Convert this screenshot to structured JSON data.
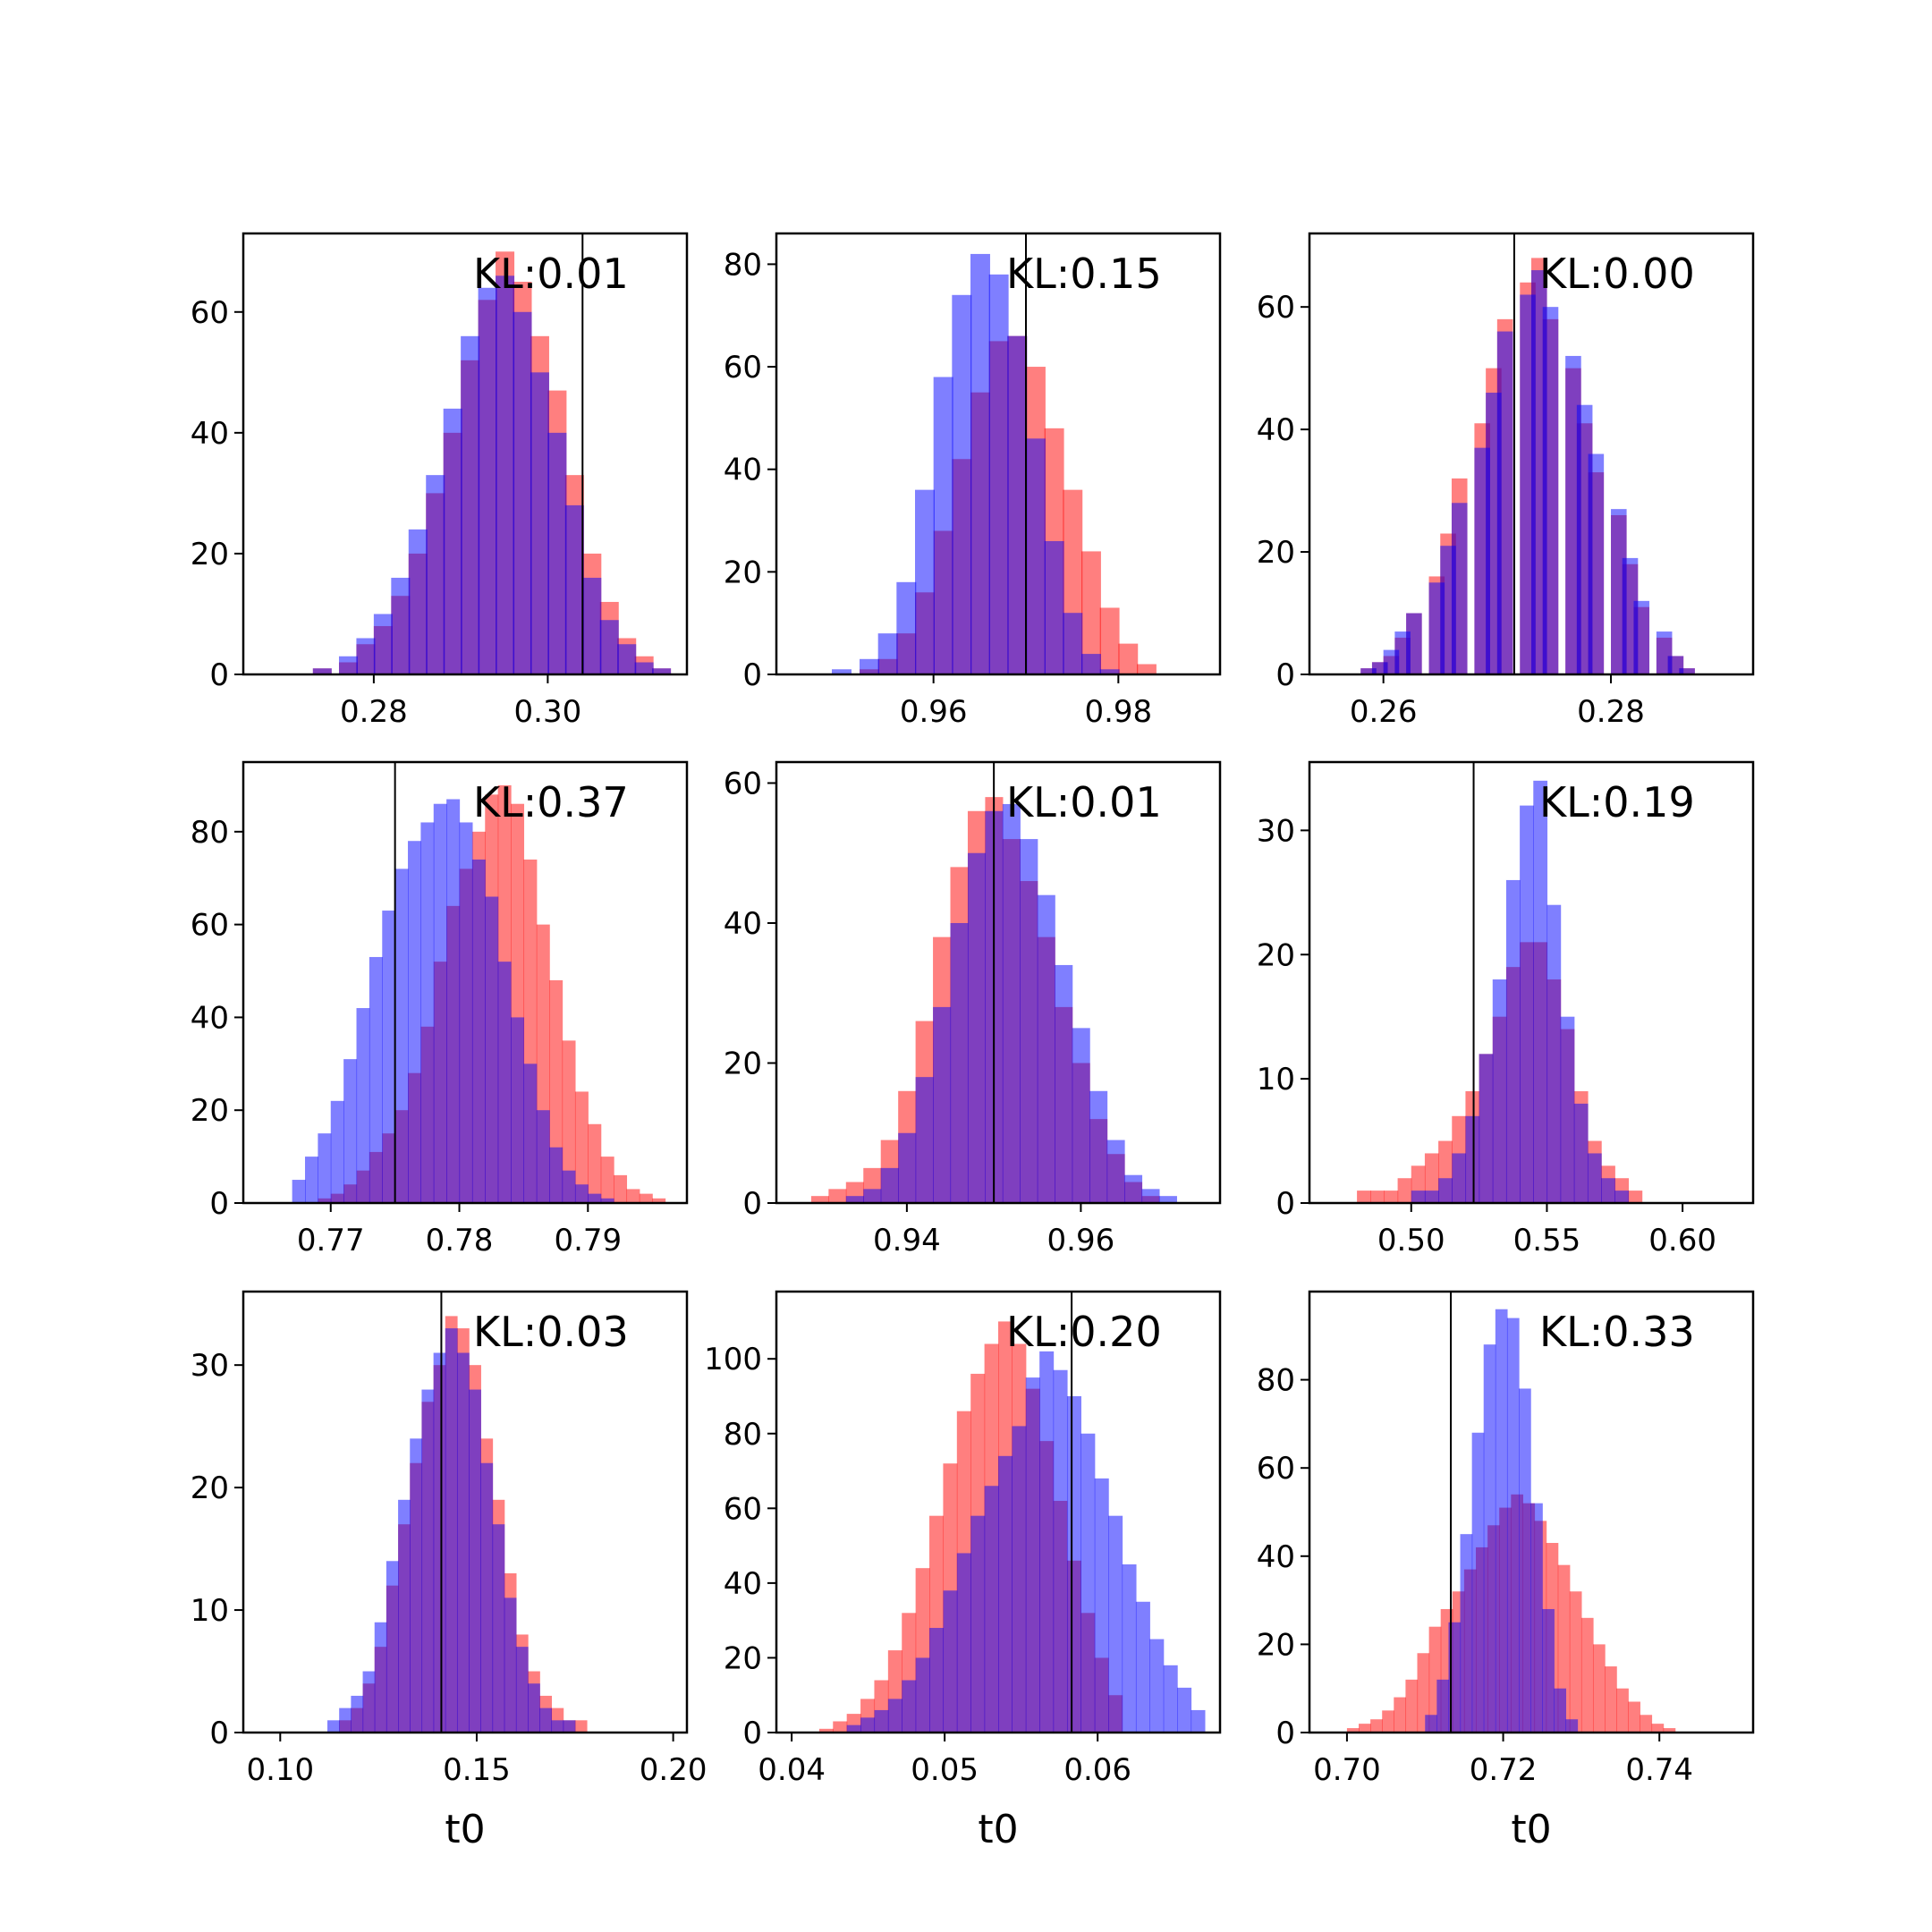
{
  "figure": {
    "background": "#ffffff",
    "colors": {
      "red": "#ff0000",
      "blue": "#0000ff",
      "red_alpha": 0.5,
      "blue_alpha": 0.5,
      "vline": "#000000"
    }
  },
  "chart_data": [
    {
      "type": "bar",
      "kind": "histogram-overlay",
      "annotation": "KL:0.01",
      "xlabel": "",
      "xlim": [
        0.265,
        0.316
      ],
      "ylim": [
        0,
        73
      ],
      "xticks": [
        0.28,
        0.3
      ],
      "xtick_labels": [
        "0.28",
        "0.30"
      ],
      "yticks": [
        0,
        20,
        40,
        60
      ],
      "ytick_labels": [
        "0",
        "20",
        "40",
        "60"
      ],
      "vline": 0.304,
      "blue": {
        "bins": [
          0.27,
          0.273,
          0.276,
          0.278,
          0.28,
          0.282,
          0.284,
          0.286,
          0.288,
          0.29,
          0.292,
          0.294,
          0.296,
          0.298,
          0.3,
          0.302,
          0.304,
          0.306,
          0.308,
          0.31,
          0.312
        ],
        "values": [
          0,
          1,
          3,
          6,
          10,
          16,
          24,
          33,
          44,
          56,
          64,
          66,
          60,
          50,
          40,
          28,
          16,
          9,
          5,
          2,
          1
        ]
      },
      "red": {
        "bins": [
          0.27,
          0.273,
          0.276,
          0.278,
          0.28,
          0.282,
          0.284,
          0.286,
          0.288,
          0.29,
          0.292,
          0.294,
          0.296,
          0.298,
          0.3,
          0.302,
          0.304,
          0.306,
          0.308,
          0.31,
          0.312
        ],
        "values": [
          0,
          1,
          2,
          5,
          8,
          13,
          20,
          30,
          40,
          52,
          62,
          70,
          65,
          56,
          47,
          33,
          20,
          12,
          6,
          3,
          1
        ]
      }
    },
    {
      "type": "bar",
      "kind": "histogram-overlay",
      "annotation": "KL:0.15",
      "xlabel": "",
      "xlim": [
        0.943,
        0.991
      ],
      "ylim": [
        0,
        86
      ],
      "xticks": [
        0.96,
        0.98
      ],
      "xtick_labels": [
        "0.96",
        "0.98"
      ],
      "yticks": [
        0,
        20,
        40,
        60,
        80
      ],
      "ytick_labels": [
        "0",
        "20",
        "40",
        "60",
        "80"
      ],
      "vline": 0.97,
      "blue": {
        "bins": [
          0.949,
          0.952,
          0.954,
          0.956,
          0.958,
          0.96,
          0.962,
          0.964,
          0.966,
          0.968,
          0.97,
          0.972,
          0.974,
          0.976,
          0.978,
          0.98
        ],
        "values": [
          1,
          3,
          8,
          18,
          36,
          58,
          74,
          82,
          78,
          66,
          46,
          26,
          12,
          4,
          1,
          0
        ]
      },
      "red": {
        "bins": [
          0.949,
          0.952,
          0.954,
          0.956,
          0.958,
          0.96,
          0.962,
          0.964,
          0.966,
          0.968,
          0.97,
          0.972,
          0.974,
          0.976,
          0.978,
          0.98,
          0.982
        ],
        "values": [
          0,
          1,
          3,
          8,
          16,
          28,
          42,
          55,
          65,
          66,
          60,
          48,
          36,
          24,
          13,
          6,
          2
        ]
      }
    },
    {
      "type": "bar",
      "kind": "histogram-overlay",
      "annotation": "KL:0.00",
      "xlabel": "",
      "xlim": [
        0.2535,
        0.2925
      ],
      "ylim": [
        0,
        72
      ],
      "xticks": [
        0.26,
        0.28
      ],
      "xtick_labels": [
        "0.26",
        "0.28"
      ],
      "yticks": [
        0,
        20,
        40,
        60
      ],
      "ytick_labels": [
        "0",
        "20",
        "40",
        "60"
      ],
      "vline": 0.2715,
      "blue": {
        "bins": [
          0.256,
          0.258,
          0.259,
          0.26,
          0.261,
          0.262,
          0.264,
          0.265,
          0.266,
          0.268,
          0.269,
          0.27,
          0.272,
          0.273,
          0.274,
          0.276,
          0.277,
          0.278,
          0.28,
          0.281,
          0.282,
          0.284,
          0.285,
          0.286,
          0.288
        ],
        "values": [
          0,
          1,
          2,
          4,
          7,
          10,
          15,
          21,
          28,
          37,
          46,
          56,
          62,
          66,
          60,
          52,
          44,
          36,
          27,
          19,
          12,
          7,
          3,
          1,
          0
        ]
      },
      "red": {
        "bins": [
          0.256,
          0.258,
          0.259,
          0.26,
          0.261,
          0.262,
          0.264,
          0.265,
          0.266,
          0.268,
          0.269,
          0.27,
          0.272,
          0.273,
          0.274,
          0.276,
          0.277,
          0.278,
          0.28,
          0.281,
          0.282,
          0.284,
          0.285,
          0.286,
          0.288
        ],
        "values": [
          0,
          1,
          2,
          3,
          6,
          10,
          16,
          23,
          32,
          41,
          50,
          58,
          64,
          68,
          58,
          50,
          41,
          33,
          26,
          18,
          11,
          6,
          3,
          1,
          0
        ]
      }
    },
    {
      "type": "bar",
      "kind": "histogram-overlay",
      "annotation": "KL:0.37",
      "xlabel": "",
      "xlim": [
        0.7632,
        0.7977
      ],
      "ylim": [
        0,
        95
      ],
      "xticks": [
        0.77,
        0.78,
        0.79
      ],
      "xtick_labels": [
        "0.77",
        "0.78",
        "0.79"
      ],
      "yticks": [
        0,
        20,
        40,
        60,
        80
      ],
      "ytick_labels": [
        "0",
        "20",
        "40",
        "60",
        "80"
      ],
      "vline": 0.775,
      "blue": {
        "bins": [
          0.767,
          0.768,
          0.769,
          0.77,
          0.771,
          0.772,
          0.773,
          0.774,
          0.775,
          0.776,
          0.777,
          0.778,
          0.779,
          0.78,
          0.781,
          0.782,
          0.783,
          0.784,
          0.785,
          0.786,
          0.787,
          0.788,
          0.789,
          0.79,
          0.791,
          0.792
        ],
        "values": [
          5,
          10,
          15,
          22,
          31,
          42,
          53,
          63,
          72,
          78,
          82,
          86,
          87,
          82,
          74,
          66,
          52,
          40,
          30,
          20,
          12,
          7,
          4,
          2,
          1,
          0
        ]
      },
      "red": {
        "bins": [
          0.767,
          0.768,
          0.769,
          0.77,
          0.771,
          0.772,
          0.773,
          0.774,
          0.775,
          0.776,
          0.777,
          0.778,
          0.779,
          0.78,
          0.781,
          0.782,
          0.783,
          0.784,
          0.785,
          0.786,
          0.787,
          0.788,
          0.789,
          0.79,
          0.791,
          0.792,
          0.793,
          0.794,
          0.795
        ],
        "values": [
          0,
          0,
          1,
          2,
          4,
          7,
          11,
          15,
          20,
          28,
          38,
          52,
          64,
          72,
          80,
          88,
          90,
          86,
          74,
          60,
          48,
          35,
          24,
          17,
          10,
          6,
          3,
          2,
          1
        ]
      }
    },
    {
      "type": "bar",
      "kind": "histogram-overlay",
      "annotation": "KL:0.01",
      "xlabel": "",
      "xlim": [
        0.925,
        0.976
      ],
      "ylim": [
        0,
        63
      ],
      "xticks": [
        0.94,
        0.96
      ],
      "xtick_labels": [
        "0.94",
        "0.96"
      ],
      "yticks": [
        0,
        20,
        40,
        60
      ],
      "ytick_labels": [
        "0",
        "20",
        "40",
        "60"
      ],
      "vline": 0.95,
      "blue": {
        "bins": [
          0.931,
          0.933,
          0.935,
          0.937,
          0.939,
          0.941,
          0.943,
          0.945,
          0.947,
          0.949,
          0.951,
          0.953,
          0.955,
          0.957,
          0.959,
          0.961,
          0.963,
          0.965,
          0.967,
          0.969
        ],
        "values": [
          0,
          1,
          2,
          5,
          10,
          18,
          28,
          40,
          50,
          56,
          57,
          52,
          44,
          34,
          25,
          16,
          9,
          4,
          2,
          1
        ]
      },
      "red": {
        "bins": [
          0.929,
          0.931,
          0.933,
          0.935,
          0.937,
          0.939,
          0.941,
          0.943,
          0.945,
          0.947,
          0.949,
          0.951,
          0.953,
          0.955,
          0.957,
          0.959,
          0.961,
          0.963,
          0.965,
          0.967
        ],
        "values": [
          1,
          2,
          3,
          5,
          9,
          16,
          26,
          38,
          48,
          56,
          58,
          52,
          46,
          38,
          28,
          20,
          12,
          7,
          3,
          1
        ]
      }
    },
    {
      "type": "bar",
      "kind": "histogram-overlay",
      "annotation": "KL:0.19",
      "xlabel": "",
      "xlim": [
        0.4625,
        0.626
      ],
      "ylim": [
        0,
        35.5
      ],
      "xticks": [
        0.5,
        0.55,
        0.6
      ],
      "xtick_labels": [
        "0.50",
        "0.55",
        "0.60"
      ],
      "yticks": [
        0,
        10,
        20,
        30
      ],
      "ytick_labels": [
        "0",
        "10",
        "20",
        "30"
      ],
      "vline": 0.523,
      "blue": {
        "bins": [
          0.495,
          0.5,
          0.505,
          0.51,
          0.515,
          0.52,
          0.525,
          0.53,
          0.535,
          0.54,
          0.545,
          0.55,
          0.555,
          0.56,
          0.565,
          0.57,
          0.575,
          0.58
        ],
        "values": [
          0,
          1,
          1,
          2,
          4,
          7,
          12,
          18,
          26,
          32,
          34,
          24,
          15,
          8,
          4,
          2,
          1,
          0
        ]
      },
      "red": {
        "bins": [
          0.475,
          0.48,
          0.485,
          0.49,
          0.495,
          0.5,
          0.505,
          0.51,
          0.515,
          0.52,
          0.525,
          0.53,
          0.535,
          0.54,
          0.545,
          0.55,
          0.555,
          0.56,
          0.565,
          0.57,
          0.575,
          0.58,
          0.585
        ],
        "values": [
          0,
          1,
          1,
          1,
          2,
          3,
          4,
          5,
          7,
          9,
          12,
          15,
          19,
          21,
          21,
          18,
          14,
          9,
          5,
          3,
          2,
          1,
          0
        ]
      }
    },
    {
      "type": "bar",
      "kind": "histogram-overlay",
      "annotation": "KL:0.03",
      "xlabel": "t0",
      "xlim": [
        0.0906,
        0.2035
      ],
      "ylim": [
        0,
        36
      ],
      "xticks": [
        0.1,
        0.15,
        0.2
      ],
      "xtick_labels": [
        "0.10",
        "0.15",
        "0.20"
      ],
      "yticks": [
        0,
        10,
        20,
        30
      ],
      "ytick_labels": [
        "0",
        "10",
        "20",
        "30"
      ],
      "vline": 0.141,
      "blue": {
        "bins": [
          0.109,
          0.112,
          0.115,
          0.118,
          0.121,
          0.124,
          0.127,
          0.13,
          0.133,
          0.136,
          0.139,
          0.142,
          0.145,
          0.148,
          0.151,
          0.154,
          0.157,
          0.16,
          0.163,
          0.166,
          0.169,
          0.172,
          0.175,
          0.178
        ],
        "values": [
          0,
          1,
          2,
          3,
          5,
          9,
          14,
          19,
          24,
          28,
          31,
          33,
          31,
          28,
          22,
          17,
          11,
          7,
          4,
          2,
          1,
          1,
          0,
          0
        ]
      },
      "red": {
        "bins": [
          0.109,
          0.112,
          0.115,
          0.118,
          0.121,
          0.124,
          0.127,
          0.13,
          0.133,
          0.136,
          0.139,
          0.142,
          0.145,
          0.148,
          0.151,
          0.154,
          0.157,
          0.16,
          0.163,
          0.166,
          0.169,
          0.172,
          0.175,
          0.178
        ],
        "values": [
          0,
          0,
          1,
          2,
          4,
          7,
          12,
          17,
          22,
          27,
          30,
          34,
          33,
          30,
          24,
          19,
          13,
          8,
          5,
          3,
          2,
          1,
          1,
          0
        ]
      }
    },
    {
      "type": "bar",
      "kind": "histogram-overlay",
      "annotation": "KL:0.20",
      "xlabel": "t0",
      "xlim": [
        0.039,
        0.068
      ],
      "ylim": [
        0,
        118
      ],
      "xticks": [
        0.04,
        0.05,
        0.06
      ],
      "xtick_labels": [
        "0.04",
        "0.05",
        "0.06"
      ],
      "yticks": [
        0,
        20,
        40,
        60,
        80,
        100
      ],
      "ytick_labels": [
        "0",
        "20",
        "40",
        "60",
        "80",
        "100"
      ],
      "vline": 0.0583,
      "blue": {
        "bins": [
          0.0436,
          0.0445,
          0.0454,
          0.0463,
          0.0472,
          0.0481,
          0.049,
          0.0499,
          0.0508,
          0.0517,
          0.0526,
          0.0535,
          0.0544,
          0.0553,
          0.0562,
          0.0571,
          0.058,
          0.0589,
          0.0598,
          0.0607,
          0.0616,
          0.0625,
          0.0634,
          0.0643,
          0.0652,
          0.0661
        ],
        "values": [
          2,
          4,
          6,
          9,
          14,
          20,
          28,
          38,
          48,
          58,
          66,
          74,
          82,
          95,
          102,
          97,
          90,
          80,
          68,
          58,
          45,
          35,
          25,
          18,
          12,
          6
        ]
      },
      "red": {
        "bins": [
          0.0418,
          0.0427,
          0.0436,
          0.0445,
          0.0454,
          0.0463,
          0.0472,
          0.0481,
          0.049,
          0.0499,
          0.0508,
          0.0517,
          0.0526,
          0.0535,
          0.0544,
          0.0553,
          0.0562,
          0.0571,
          0.058,
          0.0589,
          0.0598,
          0.0607
        ],
        "values": [
          1,
          3,
          5,
          9,
          14,
          22,
          32,
          44,
          58,
          72,
          86,
          96,
          104,
          110,
          104,
          92,
          78,
          62,
          46,
          32,
          20,
          10
        ]
      }
    },
    {
      "type": "bar",
      "kind": "histogram-overlay",
      "annotation": "KL:0.33",
      "xlabel": "t0",
      "xlim": [
        0.6952,
        0.752
      ],
      "ylim": [
        0,
        100
      ],
      "xticks": [
        0.7,
        0.72,
        0.74
      ],
      "xtick_labels": [
        "0.70",
        "0.72",
        "0.74"
      ],
      "yticks": [
        0,
        20,
        40,
        60,
        80
      ],
      "ytick_labels": [
        "0",
        "20",
        "40",
        "60",
        "80"
      ],
      "vline": 0.7133,
      "blue": {
        "bins": [
          0.71,
          0.7115,
          0.713,
          0.7145,
          0.716,
          0.7175,
          0.719,
          0.7205,
          0.722,
          0.7235,
          0.725,
          0.7265,
          0.728
        ],
        "values": [
          4,
          12,
          25,
          45,
          68,
          88,
          96,
          94,
          78,
          52,
          28,
          10,
          3
        ]
      },
      "red": {
        "bins": [
          0.7,
          0.7015,
          0.703,
          0.7045,
          0.706,
          0.7075,
          0.709,
          0.7105,
          0.712,
          0.7135,
          0.715,
          0.7165,
          0.718,
          0.7195,
          0.721,
          0.7225,
          0.724,
          0.7255,
          0.727,
          0.7285,
          0.73,
          0.7315,
          0.733,
          0.7345,
          0.736,
          0.7375,
          0.739,
          0.7405,
          0.742
        ],
        "values": [
          1,
          2,
          3,
          5,
          8,
          12,
          18,
          24,
          28,
          32,
          37,
          42,
          47,
          51,
          54,
          52,
          48,
          43,
          38,
          32,
          26,
          20,
          15,
          10,
          7,
          4,
          2,
          1,
          0
        ]
      }
    }
  ]
}
